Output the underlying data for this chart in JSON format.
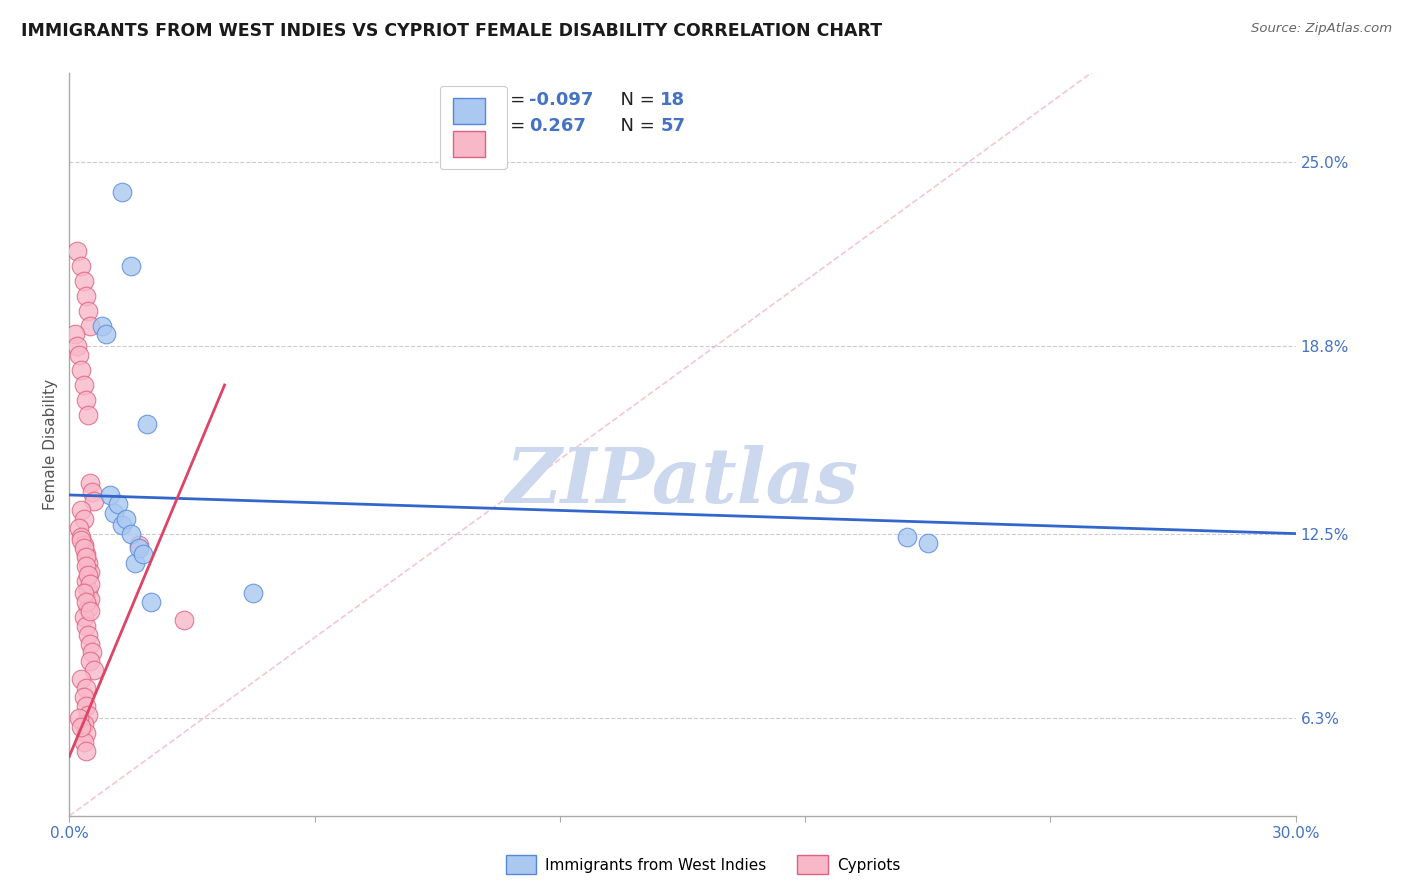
{
  "title": "IMMIGRANTS FROM WEST INDIES VS CYPRIOT FEMALE DISABILITY CORRELATION CHART",
  "source_text": "Source: ZipAtlas.com",
  "ylabel": "Female Disability",
  "xlim": [
    0.0,
    30.0
  ],
  "ylim": [
    3.0,
    28.0
  ],
  "y_tick_values": [
    6.3,
    12.5,
    18.8,
    25.0
  ],
  "legend_R1": "-0.097",
  "legend_N1": "18",
  "legend_R2": "0.267",
  "legend_N2": "57",
  "blue_color": "#aac8f0",
  "blue_edge_color": "#5588dd",
  "pink_color": "#f8b8c8",
  "pink_edge_color": "#e06080",
  "blue_line_color": "#3366cc",
  "pink_line_color": "#dd4466",
  "diag_line_color": "#f0b0be",
  "grid_color": "#cccccc",
  "watermark_color": "#ccd8ee",
  "blue_scatter_x": [
    1.3,
    1.5,
    0.8,
    0.9,
    1.0,
    1.1,
    1.2,
    1.3,
    1.4,
    1.5,
    1.6,
    1.7,
    1.8,
    1.9,
    4.5,
    20.5,
    21.0,
    2.0
  ],
  "blue_scatter_y": [
    24.0,
    21.5,
    19.5,
    19.2,
    13.8,
    13.2,
    13.5,
    12.8,
    13.0,
    12.5,
    11.5,
    12.0,
    11.8,
    16.2,
    10.5,
    12.4,
    12.2,
    10.2
  ],
  "pink_scatter_x": [
    0.2,
    0.3,
    0.35,
    0.4,
    0.45,
    0.5,
    0.15,
    0.2,
    0.25,
    0.3,
    0.35,
    0.4,
    0.45,
    0.5,
    0.55,
    0.6,
    0.3,
    0.35,
    0.25,
    0.3,
    0.35,
    0.4,
    0.45,
    0.5,
    0.4,
    0.45,
    0.5,
    0.45,
    0.35,
    0.4,
    0.45,
    0.5,
    0.55,
    0.5,
    0.6,
    0.3,
    0.4,
    0.35,
    0.4,
    0.45,
    0.35,
    0.4,
    0.35,
    0.4,
    0.3,
    0.35,
    0.4,
    0.4,
    0.45,
    0.5,
    0.35,
    0.4,
    0.5,
    2.8,
    1.7,
    0.25,
    0.3
  ],
  "pink_scatter_y": [
    22.0,
    21.5,
    21.0,
    20.5,
    20.0,
    19.5,
    19.2,
    18.8,
    18.5,
    18.0,
    17.5,
    17.0,
    16.5,
    14.2,
    13.9,
    13.6,
    13.3,
    13.0,
    12.7,
    12.4,
    12.1,
    11.8,
    11.5,
    11.2,
    10.9,
    10.6,
    10.3,
    10.0,
    9.7,
    9.4,
    9.1,
    8.8,
    8.5,
    8.2,
    7.9,
    7.6,
    7.3,
    7.0,
    6.7,
    6.4,
    6.1,
    5.8,
    5.5,
    5.2,
    12.3,
    12.0,
    11.7,
    11.4,
    11.1,
    10.8,
    10.5,
    10.2,
    9.9,
    9.6,
    12.1,
    6.3,
    6.0
  ],
  "title_fontsize": 12.5,
  "axis_label_fontsize": 11,
  "tick_fontsize": 11,
  "legend_fontsize": 13
}
